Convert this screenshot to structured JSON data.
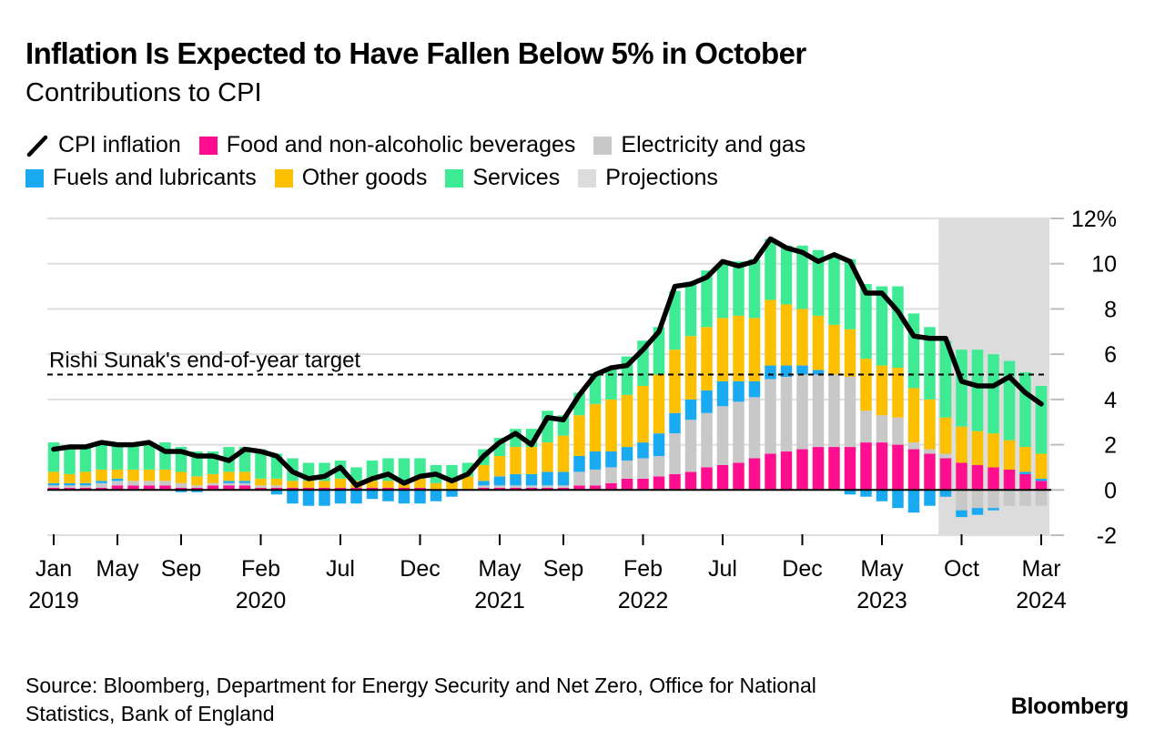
{
  "header": {
    "title": "Inflation Is Expected to Have Fallen Below 5% in October",
    "subtitle": "Contributions to CPI"
  },
  "legend": {
    "row1": [
      {
        "label": "CPI inflation",
        "color": "#000000",
        "kind": "line"
      },
      {
        "label": "Food and non-alcoholic beverages",
        "color": "#ff0f8f",
        "kind": "box"
      },
      {
        "label": "Electricity and gas",
        "color": "#c8c8c8",
        "kind": "box"
      }
    ],
    "row2": [
      {
        "label": "Fuels and lubricants",
        "color": "#1aaaf2",
        "kind": "box"
      },
      {
        "label": "Other goods",
        "color": "#fcc000",
        "kind": "box"
      },
      {
        "label": "Services",
        "color": "#3eeb94",
        "kind": "box"
      },
      {
        "label": "Projections",
        "color": "#dcdcdc",
        "kind": "box"
      }
    ]
  },
  "footer": {
    "source": "Source: Bloomberg, Department for Energy Security and Net Zero, Office for National Statistics, Bank of England",
    "logo": "Bloomberg"
  },
  "chart_data": {
    "type": "bar",
    "stacked": true,
    "ylim": [
      -2,
      12
    ],
    "yticks": [
      {
        "value": 12,
        "label": "12%"
      },
      {
        "value": 10,
        "label": "10"
      },
      {
        "value": 8,
        "label": "8"
      },
      {
        "value": 6,
        "label": "6"
      },
      {
        "value": 4,
        "label": "4"
      },
      {
        "value": 2,
        "label": "2"
      },
      {
        "value": 0,
        "label": "0"
      },
      {
        "value": -2,
        "label": "-2"
      }
    ],
    "categories": [
      "Jan 2019",
      "Feb 2019",
      "Mar 2019",
      "Apr 2019",
      "May 2019",
      "Jun 2019",
      "Jul 2019",
      "Aug 2019",
      "Sep 2019",
      "Oct 2019",
      "Nov 2019",
      "Dec 2019",
      "Jan 2020",
      "Feb 2020",
      "Mar 2020",
      "Apr 2020",
      "May 2020",
      "Jun 2020",
      "Jul 2020",
      "Aug 2020",
      "Sep 2020",
      "Oct 2020",
      "Nov 2020",
      "Dec 2020",
      "Jan 2021",
      "Feb 2021",
      "Mar 2021",
      "Apr 2021",
      "May 2021",
      "Jun 2021",
      "Jul 2021",
      "Aug 2021",
      "Sep 2021",
      "Oct 2021",
      "Nov 2021",
      "Dec 2021",
      "Jan 2022",
      "Feb 2022",
      "Mar 2022",
      "Apr 2022",
      "May 2022",
      "Jun 2022",
      "Jul 2022",
      "Aug 2022",
      "Sep 2022",
      "Oct 2022",
      "Nov 2022",
      "Dec 2022",
      "Jan 2023",
      "Feb 2023",
      "Mar 2023",
      "Apr 2023",
      "May 2023",
      "Jun 2023",
      "Jul 2023",
      "Aug 2023",
      "Sep 2023",
      "Oct 2023",
      "Nov 2023",
      "Dec 2023",
      "Jan 2024",
      "Feb 2024",
      "Mar 2024"
    ],
    "xticks": [
      {
        "index": 0,
        "month": "Jan",
        "year": "2019"
      },
      {
        "index": 4,
        "month": "May",
        "year": ""
      },
      {
        "index": 8,
        "month": "Sep",
        "year": ""
      },
      {
        "index": 13,
        "month": "Feb",
        "year": "2020"
      },
      {
        "index": 18,
        "month": "Jul",
        "year": ""
      },
      {
        "index": 23,
        "month": "Dec",
        "year": ""
      },
      {
        "index": 28,
        "month": "May",
        "year": "2021"
      },
      {
        "index": 32,
        "month": "Sep",
        "year": ""
      },
      {
        "index": 37,
        "month": "Feb",
        "year": "2022"
      },
      {
        "index": 42,
        "month": "Jul",
        "year": ""
      },
      {
        "index": 47,
        "month": "Dec",
        "year": ""
      },
      {
        "index": 52,
        "month": "May",
        "year": "2023"
      },
      {
        "index": 57,
        "month": "Oct",
        "year": ""
      },
      {
        "index": 62,
        "month": "Mar",
        "year": "2024"
      }
    ],
    "series": [
      {
        "name": "Food and non-alcoholic beverages",
        "color": "#ff0f8f",
        "values": [
          0.1,
          0.1,
          0.1,
          0.1,
          0.2,
          0.2,
          0.2,
          0.2,
          0.1,
          0.1,
          0.2,
          0.2,
          0.2,
          0.1,
          0.1,
          0.1,
          0.1,
          0.1,
          0.1,
          0.1,
          0.1,
          0.1,
          0.1,
          0.1,
          0.0,
          0.0,
          0.0,
          0.1,
          0.1,
          0.1,
          0.1,
          0.1,
          0.1,
          0.2,
          0.2,
          0.3,
          0.5,
          0.5,
          0.6,
          0.7,
          0.8,
          1.0,
          1.1,
          1.2,
          1.4,
          1.6,
          1.7,
          1.8,
          1.9,
          1.9,
          1.9,
          2.1,
          2.1,
          2.0,
          1.8,
          1.6,
          1.4,
          1.2,
          1.1,
          1.0,
          0.9,
          0.7,
          0.4
        ]
      },
      {
        "name": "Electricity and gas",
        "color": "#c8c8c8",
        "values": [
          0.1,
          0.1,
          0.1,
          0.2,
          0.2,
          0.2,
          0.2,
          0.2,
          0.2,
          0.1,
          0.1,
          0.1,
          0.1,
          0.1,
          0.1,
          0.0,
          0.0,
          0.0,
          0.0,
          0.0,
          0.0,
          0.0,
          0.0,
          0.0,
          0.0,
          0.0,
          0.0,
          0.1,
          0.1,
          0.1,
          0.1,
          0.1,
          0.1,
          0.6,
          0.7,
          0.7,
          0.8,
          0.9,
          0.9,
          1.8,
          2.3,
          2.4,
          2.6,
          2.7,
          2.7,
          3.3,
          3.3,
          3.3,
          3.2,
          3.2,
          3.1,
          1.4,
          1.2,
          1.2,
          0.3,
          0.2,
          0.2,
          -0.9,
          -0.8,
          -0.8,
          -0.7,
          -0.7,
          -0.7
        ]
      },
      {
        "name": "Fuels and lubricants",
        "color": "#1aaaf2",
        "values": [
          0.1,
          0.1,
          0.1,
          0.1,
          0.1,
          0.0,
          0.0,
          0.0,
          -0.1,
          -0.1,
          0.0,
          0.1,
          0.1,
          0.0,
          -0.2,
          -0.6,
          -0.7,
          -0.7,
          -0.6,
          -0.6,
          -0.4,
          -0.5,
          -0.6,
          -0.6,
          -0.5,
          -0.3,
          0.0,
          0.2,
          0.4,
          0.5,
          0.5,
          0.6,
          0.6,
          0.7,
          0.8,
          0.7,
          0.6,
          0.7,
          1.0,
          0.9,
          0.9,
          1.0,
          1.1,
          0.9,
          0.7,
          0.6,
          0.5,
          0.4,
          0.2,
          0.0,
          -0.2,
          -0.3,
          -0.5,
          -0.8,
          -1.0,
          -0.7,
          -0.3,
          -0.3,
          -0.3,
          -0.1,
          0.0,
          0.1,
          0.1
        ]
      },
      {
        "name": "Other goods",
        "color": "#fcc000",
        "values": [
          0.5,
          0.4,
          0.5,
          0.5,
          0.4,
          0.5,
          0.5,
          0.5,
          0.5,
          0.4,
          0.4,
          0.4,
          0.4,
          0.3,
          0.3,
          0.3,
          0.3,
          0.3,
          0.4,
          0.3,
          0.3,
          0.3,
          0.3,
          0.4,
          0.3,
          0.5,
          0.6,
          0.7,
          0.9,
          1.2,
          1.2,
          1.3,
          1.6,
          1.8,
          2.1,
          2.3,
          2.3,
          2.5,
          2.6,
          2.8,
          2.8,
          2.8,
          2.8,
          2.9,
          2.8,
          2.9,
          2.7,
          2.5,
          2.4,
          2.2,
          2.1,
          2.3,
          2.2,
          2.2,
          2.4,
          2.2,
          1.6,
          1.6,
          1.5,
          1.5,
          1.3,
          1.1,
          1.1
        ]
      },
      {
        "name": "Services",
        "color": "#3eeb94",
        "values": [
          1.3,
          1.2,
          1.2,
          1.2,
          1.2,
          1.2,
          1.1,
          1.2,
          1.1,
          1.1,
          1.0,
          1.1,
          1.1,
          1.3,
          1.1,
          1.0,
          0.8,
          0.8,
          0.8,
          0.6,
          0.9,
          1.0,
          1.0,
          0.9,
          0.8,
          0.6,
          0.6,
          0.7,
          0.8,
          0.8,
          0.8,
          1.4,
          0.9,
          1.0,
          1.3,
          1.4,
          1.7,
          2.0,
          2.1,
          2.6,
          2.4,
          2.5,
          2.4,
          2.4,
          2.6,
          2.7,
          2.6,
          2.8,
          2.9,
          3.1,
          3.1,
          3.3,
          3.5,
          3.6,
          3.3,
          3.2,
          3.4,
          3.4,
          3.6,
          3.5,
          3.5,
          3.3,
          3.0
        ]
      }
    ],
    "line": {
      "name": "CPI inflation",
      "color": "#000000",
      "values": [
        1.8,
        1.9,
        1.9,
        2.1,
        2.0,
        2.0,
        2.1,
        1.7,
        1.7,
        1.5,
        1.5,
        1.3,
        1.8,
        1.7,
        1.5,
        0.8,
        0.5,
        0.6,
        1.0,
        0.2,
        0.5,
        0.7,
        0.3,
        0.6,
        0.7,
        0.4,
        0.7,
        1.5,
        2.1,
        2.5,
        2.0,
        3.2,
        3.1,
        4.2,
        5.1,
        5.4,
        5.5,
        6.2,
        7.0,
        9.0,
        9.1,
        9.4,
        10.1,
        9.9,
        10.1,
        11.1,
        10.7,
        10.5,
        10.1,
        10.4,
        10.1,
        8.7,
        8.7,
        7.9,
        6.8,
        6.7,
        6.7,
        4.8,
        4.6,
        4.6,
        5.0,
        4.3,
        3.8
      ]
    },
    "projection_start_index": 56,
    "annotation": {
      "label": "Rishi Sunak's end-of-year target",
      "value": 5.1
    }
  }
}
